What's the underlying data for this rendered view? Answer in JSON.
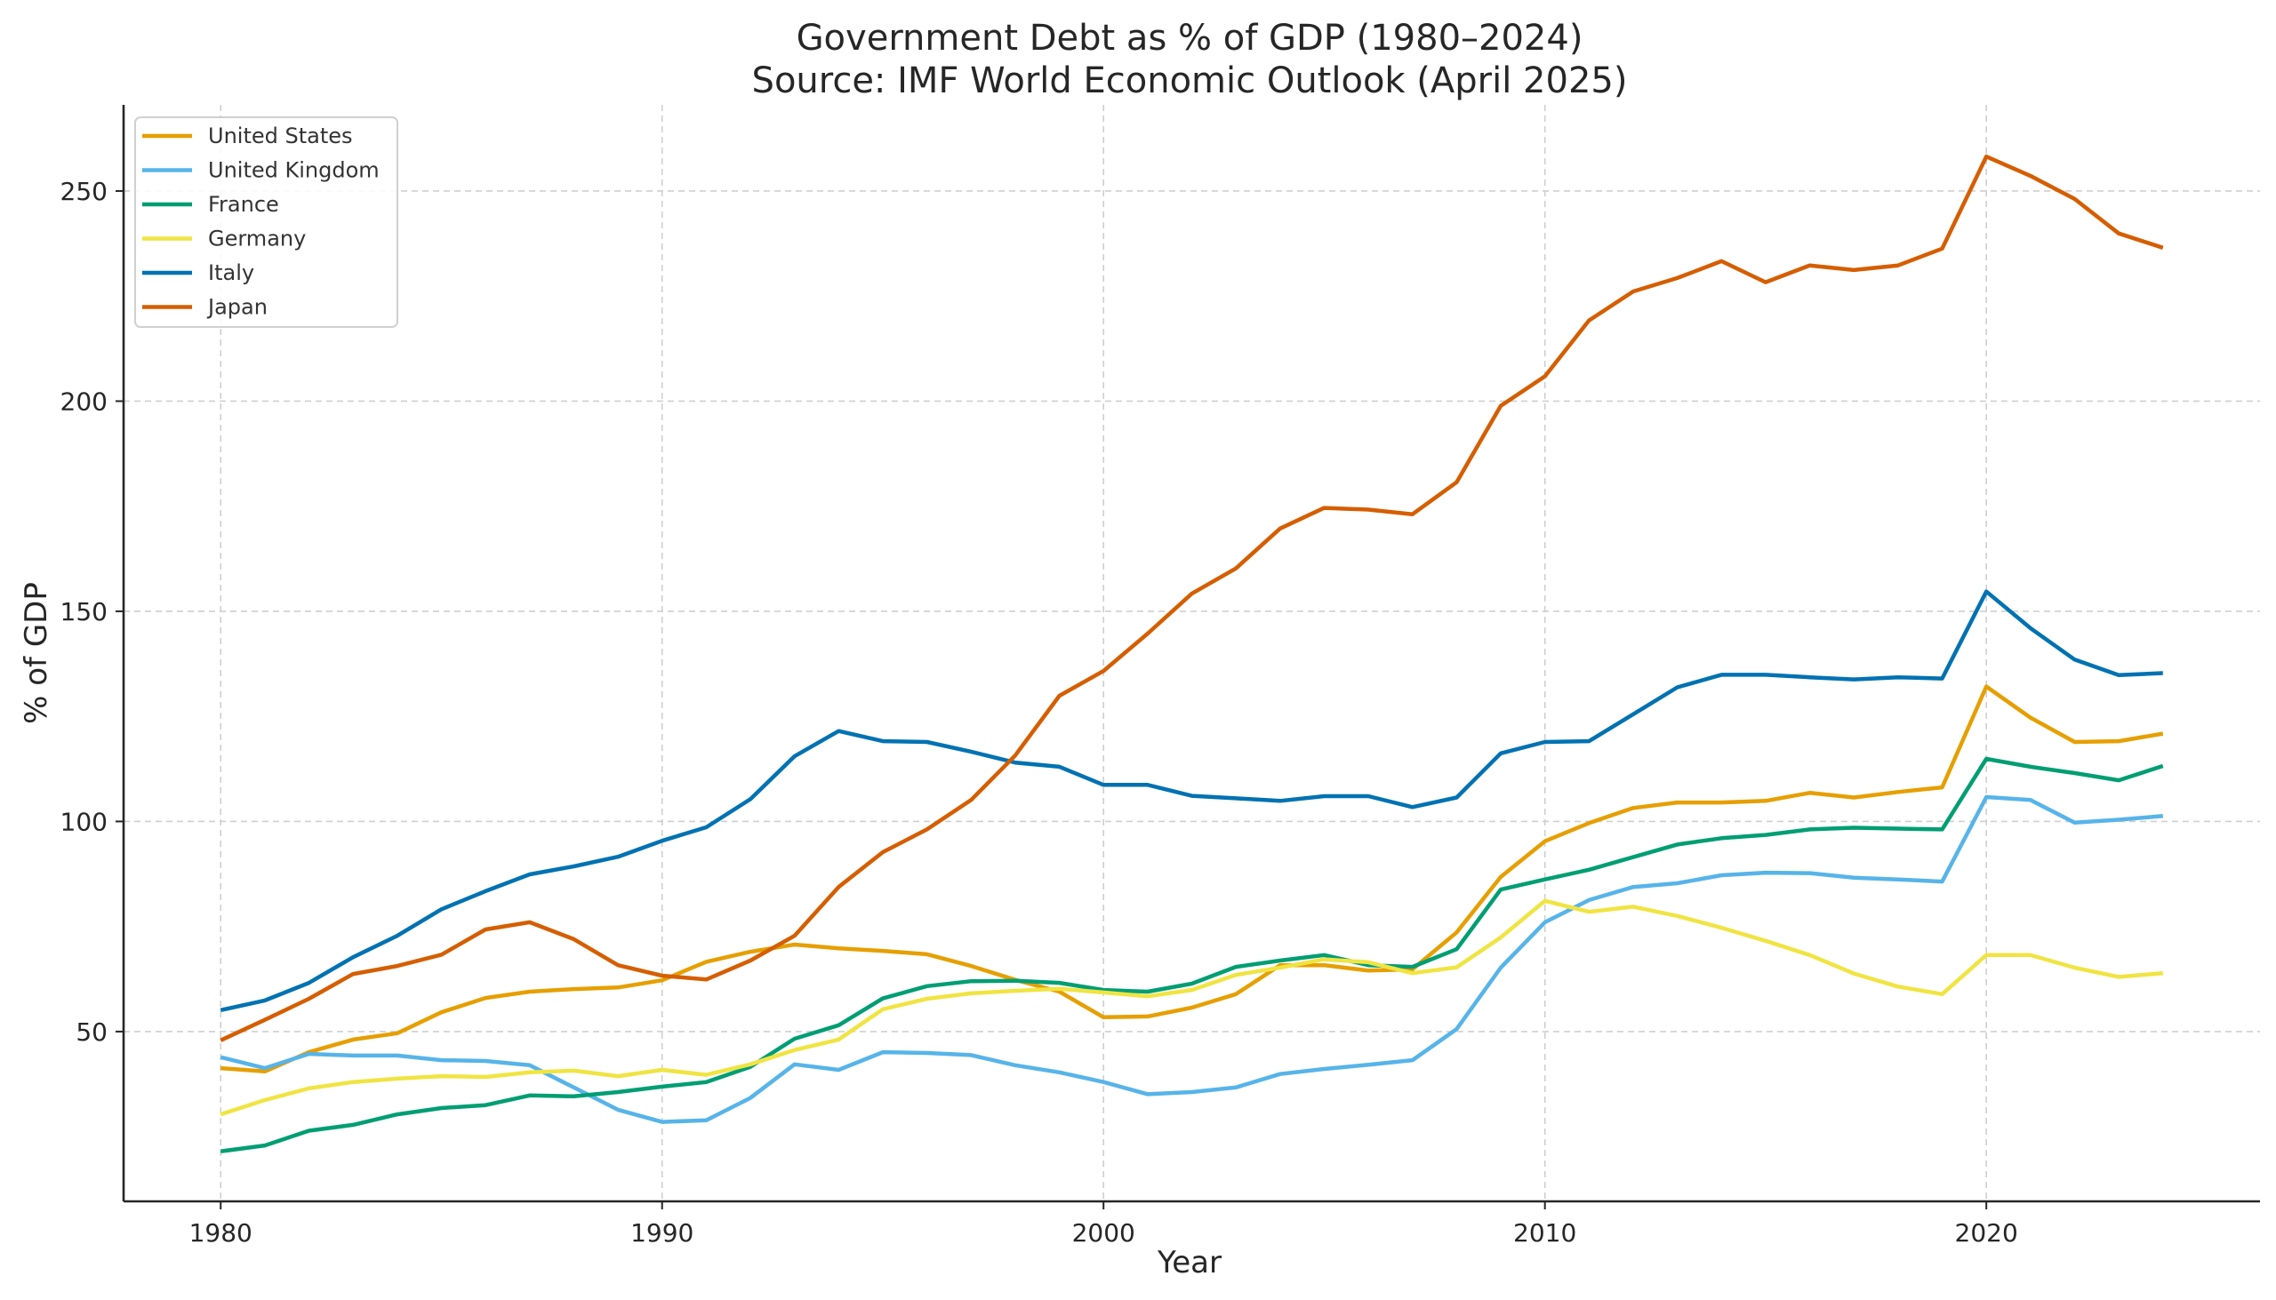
{
  "chart_data": {
    "type": "line",
    "title": "Government Debt as % of GDP (1980–2024)",
    "subtitle": "Source: IMF World Economic Outlook (April 2025)",
    "xlabel": "Year",
    "ylabel": "% of GDP",
    "xlim": [
      1977.8,
      2026.2
    ],
    "ylim": [
      9.6,
      270.5
    ],
    "xticks": [
      1980,
      1990,
      2000,
      2010,
      2020
    ],
    "xtick_labels": [
      "1980",
      "1990",
      "2000",
      "2010",
      "2020"
    ],
    "yticks": [
      50,
      100,
      150,
      200,
      250
    ],
    "ytick_labels": [
      "50",
      "100",
      "150",
      "200",
      "250"
    ],
    "grid": true,
    "legend_position": "top-left",
    "x": [
      1980,
      1981,
      1982,
      1983,
      1984,
      1985,
      1986,
      1987,
      1988,
      1989,
      1990,
      1991,
      1992,
      1993,
      1994,
      1995,
      1996,
      1997,
      1998,
      1999,
      2000,
      2001,
      2002,
      2003,
      2004,
      2005,
      2006,
      2007,
      2008,
      2009,
      2010,
      2011,
      2012,
      2013,
      2014,
      2015,
      2016,
      2017,
      2018,
      2019,
      2020,
      2021,
      2022,
      2023,
      2024
    ],
    "series": [
      {
        "name": "United States",
        "color": "#E69F00",
        "values": [
          41.3,
          40.5,
          45.1,
          48.1,
          49.6,
          54.6,
          58.0,
          59.5,
          60.1,
          60.5,
          62.2,
          66.6,
          69.0,
          70.7,
          69.8,
          69.2,
          68.4,
          65.6,
          62.3,
          59.5,
          53.4,
          53.6,
          55.7,
          58.9,
          65.8,
          65.8,
          64.5,
          64.8,
          73.6,
          86.8,
          95.3,
          99.6,
          103.2,
          104.5,
          104.5,
          104.9,
          106.8,
          105.7,
          107.0,
          108.1,
          132.1,
          124.7,
          118.9,
          119.1,
          120.9
        ]
      },
      {
        "name": "United Kingdom",
        "color": "#56B4E9",
        "values": [
          43.9,
          41.3,
          44.7,
          44.3,
          44.3,
          43.2,
          43.0,
          42.0,
          36.7,
          31.4,
          28.5,
          28.9,
          34.2,
          42.2,
          40.9,
          45.1,
          44.9,
          44.4,
          42.0,
          40.3,
          38.0,
          35.1,
          35.6,
          36.7,
          39.9,
          41.1,
          42.1,
          43.2,
          50.6,
          65.2,
          76.0,
          81.3,
          84.4,
          85.3,
          87.2,
          87.8,
          87.7,
          86.6,
          86.2,
          85.7,
          105.8,
          105.1,
          99.7,
          100.4,
          101.3
        ]
      },
      {
        "name": "France",
        "color": "#009E73",
        "values": [
          21.5,
          22.9,
          26.4,
          27.8,
          30.3,
          31.8,
          32.5,
          34.8,
          34.6,
          35.6,
          36.9,
          38.0,
          41.6,
          48.3,
          51.5,
          57.9,
          60.8,
          62.0,
          62.1,
          61.6,
          59.9,
          59.5,
          61.4,
          65.4,
          66.9,
          68.2,
          65.8,
          65.4,
          69.6,
          83.8,
          86.2,
          88.5,
          91.5,
          94.5,
          96.0,
          96.8,
          98.1,
          98.5,
          98.3,
          98.1,
          114.9,
          113.0,
          111.5,
          109.8,
          113.2
        ]
      },
      {
        "name": "Germany",
        "color": "#F0E442",
        "values": [
          30.3,
          33.7,
          36.5,
          38.0,
          38.8,
          39.4,
          39.2,
          40.3,
          40.7,
          39.4,
          40.9,
          39.7,
          42.2,
          45.6,
          48.1,
          55.3,
          57.8,
          59.1,
          59.7,
          60.2,
          59.3,
          58.4,
          59.9,
          63.5,
          65.2,
          67.2,
          66.5,
          63.9,
          65.3,
          72.4,
          81.1,
          78.5,
          79.7,
          77.5,
          74.7,
          71.6,
          68.2,
          63.8,
          60.7,
          58.9,
          68.2,
          68.2,
          65.2,
          63.0,
          63.9
        ]
      },
      {
        "name": "Italy",
        "color": "#0072B2",
        "values": [
          55.1,
          57.4,
          61.6,
          67.7,
          72.8,
          79.1,
          83.4,
          87.4,
          89.3,
          91.6,
          95.4,
          98.6,
          105.3,
          115.5,
          121.5,
          119.1,
          118.9,
          116.6,
          114.0,
          113.0,
          108.7,
          108.7,
          106.1,
          105.5,
          104.9,
          106.0,
          106.0,
          103.4,
          105.7,
          116.2,
          118.9,
          119.1,
          125.5,
          131.9,
          134.9,
          134.9,
          134.3,
          133.8,
          134.3,
          134.0,
          154.7,
          146.0,
          138.5,
          134.8,
          135.3
        ]
      },
      {
        "name": "Japan",
        "color": "#D55E00",
        "values": [
          47.9,
          52.8,
          57.8,
          63.7,
          65.6,
          68.3,
          74.3,
          76.0,
          72.0,
          65.8,
          63.3,
          62.4,
          66.9,
          72.8,
          84.4,
          92.7,
          98.1,
          105.1,
          115.7,
          129.9,
          135.8,
          144.7,
          154.2,
          160.2,
          169.7,
          174.6,
          174.2,
          173.1,
          180.7,
          198.9,
          205.9,
          219.2,
          226.1,
          229.3,
          233.3,
          228.3,
          232.3,
          231.2,
          232.3,
          236.3,
          258.2,
          253.6,
          248.1,
          239.9,
          236.5
        ]
      }
    ]
  }
}
